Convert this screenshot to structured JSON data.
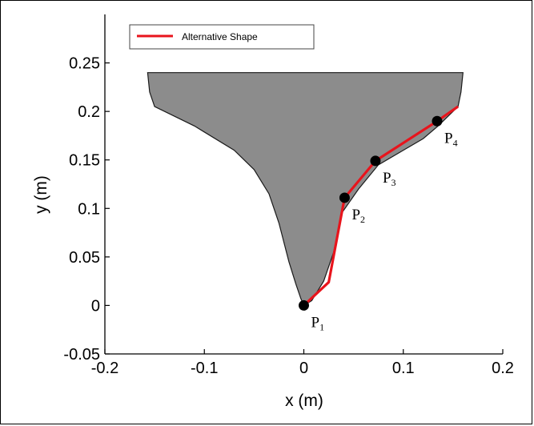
{
  "chart_data": {
    "type": "line",
    "xlabel": "x (m)",
    "ylabel": "y (m)",
    "xlim": [
      -0.2,
      0.2
    ],
    "ylim": [
      -0.05,
      0.3
    ],
    "x_ticks": [
      -0.2,
      -0.1,
      0,
      0.1,
      0.2
    ],
    "x_tick_labels": [
      "-0.2",
      "-0.1",
      "0",
      "0.1",
      "0.2"
    ],
    "y_ticks": [
      -0.05,
      0,
      0.05,
      0.1,
      0.15,
      0.2,
      0.25
    ],
    "y_tick_labels": [
      "-0.05",
      "0",
      "0.05",
      "0.1",
      "0.15",
      "0.2",
      "0.25"
    ],
    "grid": false,
    "legend": {
      "position": "top-left",
      "entries": [
        "Alternative Shape"
      ]
    },
    "fill_color": "#8c8c8c",
    "series": [
      {
        "name": "Alternative Shape",
        "color": "#e8141c",
        "x": [
          0,
          0.025,
          0.041,
          0.072,
          0.134,
          0.155
        ],
        "y": [
          0,
          0.024,
          0.111,
          0.149,
          0.19,
          0.205
        ]
      }
    ],
    "hull_outline": {
      "x": [
        -0.157,
        -0.155,
        -0.15,
        -0.11,
        -0.07,
        -0.05,
        -0.035,
        -0.025,
        -0.015,
        -0.008,
        -0.003,
        0,
        0.008,
        0.02,
        0.03,
        0.038,
        0.055,
        0.075,
        0.1,
        0.12,
        0.135,
        0.155,
        0.158,
        0.16
      ],
      "y": [
        0.24,
        0.22,
        0.205,
        0.185,
        0.16,
        0.14,
        0.115,
        0.085,
        0.045,
        0.022,
        0.007,
        0,
        0.005,
        0.025,
        0.055,
        0.095,
        0.12,
        0.145,
        0.16,
        0.172,
        0.185,
        0.205,
        0.22,
        0.24
      ]
    },
    "points": [
      {
        "label": "P",
        "sub": "1",
        "x": 0,
        "y": 0
      },
      {
        "label": "P",
        "sub": "2",
        "x": 0.041,
        "y": 0.111
      },
      {
        "label": "P",
        "sub": "3",
        "x": 0.072,
        "y": 0.149
      },
      {
        "label": "P",
        "sub": "4",
        "x": 0.134,
        "y": 0.19
      }
    ]
  }
}
